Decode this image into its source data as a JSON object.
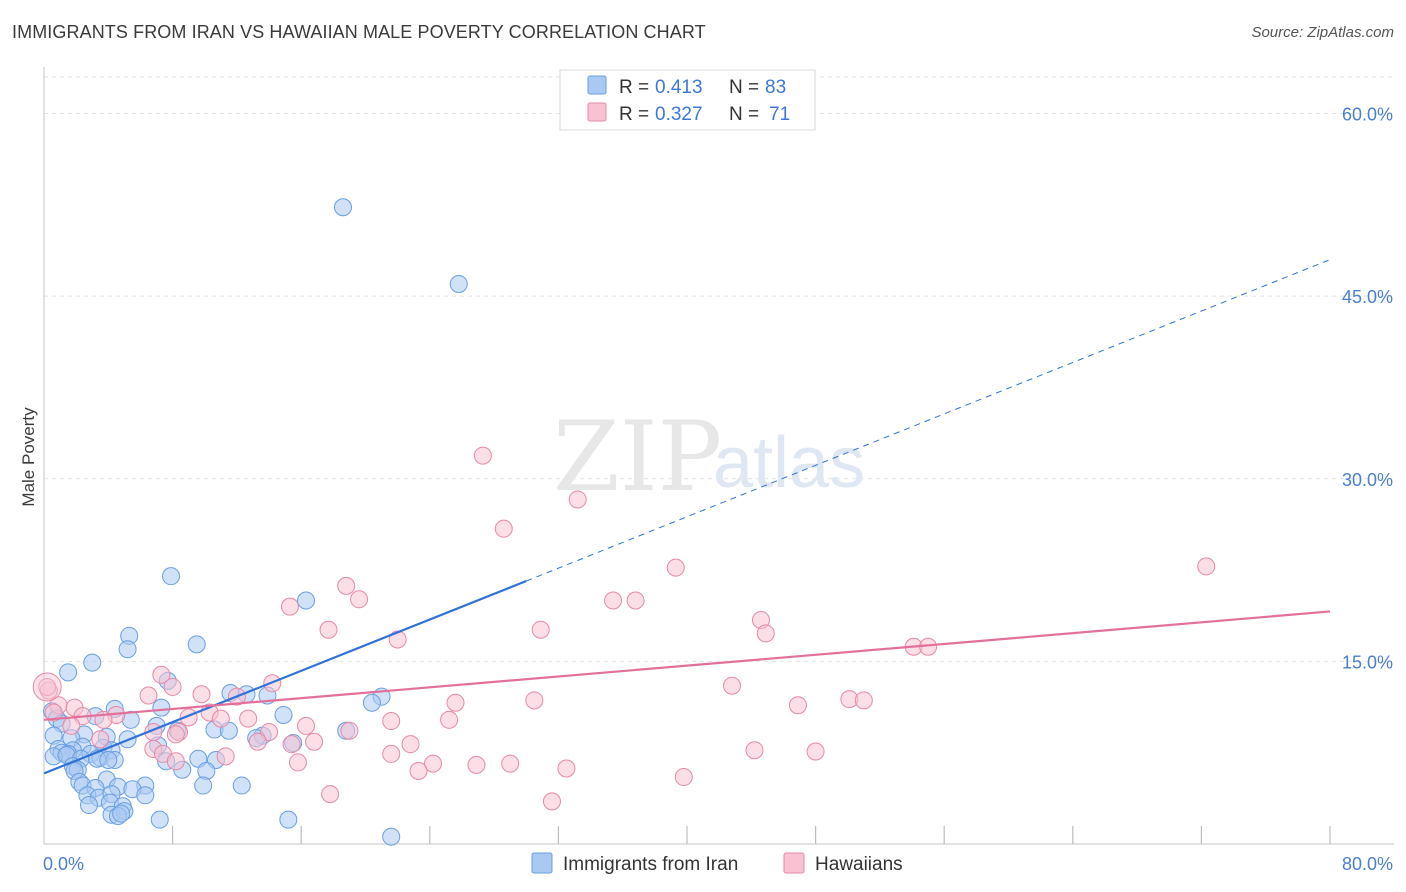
{
  "title": "IMMIGRANTS FROM IRAN VS HAWAIIAN MALE POVERTY CORRELATION CHART",
  "source": "Source: ZipAtlas.com",
  "watermark": {
    "zip": "ZIP",
    "atlas": "atlas"
  },
  "legend_top": [
    {
      "r_label": "R =",
      "r_value": "0.413",
      "n_label": "N =",
      "n_value": "83",
      "color": "#a9c8f2",
      "stroke": "#6a9fe0"
    },
    {
      "r_label": "R =",
      "r_value": "0.327",
      "n_label": "N =",
      "n_value": "71",
      "color": "#f8c2d2",
      "stroke": "#e58aa8"
    }
  ],
  "legend_bottom": [
    {
      "label": "Immigrants from Iran",
      "color": "#a9c8f2",
      "stroke": "#6a9fe0"
    },
    {
      "label": "Hawaiians",
      "color": "#f8c2d2",
      "stroke": "#e58aa8"
    }
  ],
  "chart_data": {
    "type": "scatter",
    "title": "IMMIGRANTS FROM IRAN VS HAWAIIAN MALE POVERTY CORRELATION CHART",
    "xlabel": "",
    "ylabel": "Male Poverty",
    "xlim": [
      0,
      80
    ],
    "ylim": [
      0,
      63
    ],
    "x_tick_labels": [
      {
        "value": 0,
        "label": "0.0%"
      },
      {
        "value": 80,
        "label": "80.0%"
      }
    ],
    "x_minor_ticks": [
      8,
      16,
      24,
      32,
      40,
      48,
      56,
      64,
      72,
      80
    ],
    "y_tick_labels": [
      {
        "value": 15,
        "label": "15.0%"
      },
      {
        "value": 30,
        "label": "30.0%"
      },
      {
        "value": 45,
        "label": "45.0%"
      },
      {
        "value": 60,
        "label": "60.0%"
      }
    ],
    "grid": true,
    "legend_position": "top-center",
    "series": [
      {
        "name": "Immigrants from Iran",
        "color": "#a9c8f2",
        "stroke": "#6a9fe0",
        "trend": {
          "x0": 0,
          "y0": 5.8,
          "x1": 30,
          "y1": 21.6,
          "dash_x1": 80,
          "dash_y1": 48.0,
          "color": "#2f72d6"
        },
        "points": [
          [
            18.6,
            52.3
          ],
          [
            25.8,
            46.0
          ],
          [
            7.9,
            22.0
          ],
          [
            16.3,
            20.0
          ],
          [
            5.3,
            17.1
          ],
          [
            5.2,
            16.0
          ],
          [
            9.5,
            16.4
          ],
          [
            3.0,
            14.9
          ],
          [
            1.5,
            14.1
          ],
          [
            7.7,
            13.4
          ],
          [
            11.6,
            12.4
          ],
          [
            12.6,
            12.3
          ],
          [
            13.9,
            12.2
          ],
          [
            21.0,
            12.1
          ],
          [
            20.4,
            11.6
          ],
          [
            7.3,
            11.2
          ],
          [
            4.4,
            11.1
          ],
          [
            0.5,
            10.9
          ],
          [
            3.2,
            10.5
          ],
          [
            14.9,
            10.6
          ],
          [
            0.8,
            10.3
          ],
          [
            1.1,
            9.9
          ],
          [
            5.4,
            10.2
          ],
          [
            7.0,
            9.7
          ],
          [
            10.6,
            9.4
          ],
          [
            11.5,
            9.3
          ],
          [
            18.8,
            9.3
          ],
          [
            8.3,
            9.3
          ],
          [
            2.5,
            9.0
          ],
          [
            0.6,
            8.9
          ],
          [
            1.7,
            8.7
          ],
          [
            3.9,
            8.8
          ],
          [
            5.2,
            8.6
          ],
          [
            13.6,
            8.9
          ],
          [
            13.2,
            8.7
          ],
          [
            15.5,
            8.3
          ],
          [
            7.1,
            8.1
          ],
          [
            2.4,
            8.0
          ],
          [
            3.7,
            7.9
          ],
          [
            0.9,
            7.8
          ],
          [
            4.2,
            7.7
          ],
          [
            1.8,
            7.7
          ],
          [
            1.1,
            7.5
          ],
          [
            1.5,
            7.4
          ],
          [
            2.9,
            7.4
          ],
          [
            3.5,
            7.1
          ],
          [
            4.4,
            6.9
          ],
          [
            9.6,
            7.0
          ],
          [
            10.7,
            6.9
          ],
          [
            0.6,
            7.2
          ],
          [
            1.4,
            7.3
          ],
          [
            2.3,
            7.0
          ],
          [
            3.3,
            7.0
          ],
          [
            4.0,
            6.9
          ],
          [
            7.6,
            6.8
          ],
          [
            1.8,
            6.4
          ],
          [
            2.1,
            6.1
          ],
          [
            8.6,
            6.1
          ],
          [
            10.1,
            6.0
          ],
          [
            1.9,
            6.0
          ],
          [
            3.9,
            5.3
          ],
          [
            2.2,
            5.1
          ],
          [
            4.6,
            4.7
          ],
          [
            2.4,
            4.8
          ],
          [
            6.3,
            4.8
          ],
          [
            3.2,
            4.6
          ],
          [
            5.5,
            4.5
          ],
          [
            9.9,
            4.8
          ],
          [
            12.3,
            4.8
          ],
          [
            2.7,
            4.0
          ],
          [
            3.4,
            3.8
          ],
          [
            4.2,
            4.1
          ],
          [
            6.3,
            4.0
          ],
          [
            4.1,
            3.4
          ],
          [
            2.8,
            3.2
          ],
          [
            4.9,
            3.1
          ],
          [
            4.2,
            2.4
          ],
          [
            5.0,
            2.7
          ],
          [
            4.6,
            2.3
          ],
          [
            7.2,
            2.0
          ],
          [
            15.2,
            2.0
          ],
          [
            21.6,
            0.6
          ],
          [
            4.8,
            2.5
          ]
        ]
      },
      {
        "name": "Hawaiians",
        "color": "#f8c2d2",
        "stroke": "#e58aa8",
        "trend": {
          "x0": 0,
          "y0": 10.2,
          "x1": 80,
          "y1": 19.1,
          "color": "#e3709a"
        },
        "points": [
          [
            27.3,
            31.9
          ],
          [
            33.2,
            28.3
          ],
          [
            28.6,
            25.9
          ],
          [
            72.3,
            22.8
          ],
          [
            39.3,
            22.7
          ],
          [
            18.8,
            21.2
          ],
          [
            19.6,
            20.1
          ],
          [
            35.4,
            20.0
          ],
          [
            36.8,
            20.0
          ],
          [
            15.3,
            19.5
          ],
          [
            44.6,
            18.4
          ],
          [
            30.9,
            17.6
          ],
          [
            17.7,
            17.6
          ],
          [
            44.9,
            17.3
          ],
          [
            22.0,
            16.8
          ],
          [
            54.1,
            16.2
          ],
          [
            55.0,
            16.2
          ],
          [
            7.3,
            13.9
          ],
          [
            14.2,
            13.2
          ],
          [
            8.0,
            12.9
          ],
          [
            6.5,
            12.2
          ],
          [
            9.8,
            12.3
          ],
          [
            12.0,
            12.1
          ],
          [
            42.8,
            13.0
          ],
          [
            30.5,
            11.8
          ],
          [
            50.1,
            11.9
          ],
          [
            51.0,
            11.8
          ],
          [
            25.6,
            11.6
          ],
          [
            46.9,
            11.4
          ],
          [
            0.3,
            12.6
          ],
          [
            0.9,
            11.4
          ],
          [
            1.9,
            11.2
          ],
          [
            10.3,
            10.8
          ],
          [
            11.0,
            10.3
          ],
          [
            4.5,
            10.6
          ],
          [
            2.4,
            10.5
          ],
          [
            3.7,
            10.2
          ],
          [
            9.0,
            10.4
          ],
          [
            12.7,
            10.3
          ],
          [
            21.6,
            10.1
          ],
          [
            25.2,
            10.2
          ],
          [
            16.3,
            9.7
          ],
          [
            1.7,
            9.7
          ],
          [
            6.8,
            9.2
          ],
          [
            8.4,
            9.2
          ],
          [
            14.0,
            9.2
          ],
          [
            19.0,
            9.3
          ],
          [
            8.2,
            9.0
          ],
          [
            3.5,
            8.6
          ],
          [
            13.3,
            8.4
          ],
          [
            16.8,
            8.4
          ],
          [
            22.8,
            8.2
          ],
          [
            15.4,
            8.2
          ],
          [
            6.8,
            7.8
          ],
          [
            11.3,
            7.2
          ],
          [
            7.4,
            7.4
          ],
          [
            21.6,
            7.4
          ],
          [
            44.2,
            7.7
          ],
          [
            48.0,
            7.6
          ],
          [
            15.8,
            6.7
          ],
          [
            24.2,
            6.6
          ],
          [
            26.9,
            6.5
          ],
          [
            29.0,
            6.6
          ],
          [
            32.5,
            6.2
          ],
          [
            23.3,
            6.0
          ],
          [
            8.2,
            6.8
          ],
          [
            39.8,
            5.5
          ],
          [
            17.8,
            4.1
          ],
          [
            31.6,
            3.5
          ],
          [
            0.2,
            12.9
          ],
          [
            0.6,
            10.8
          ]
        ]
      }
    ]
  }
}
